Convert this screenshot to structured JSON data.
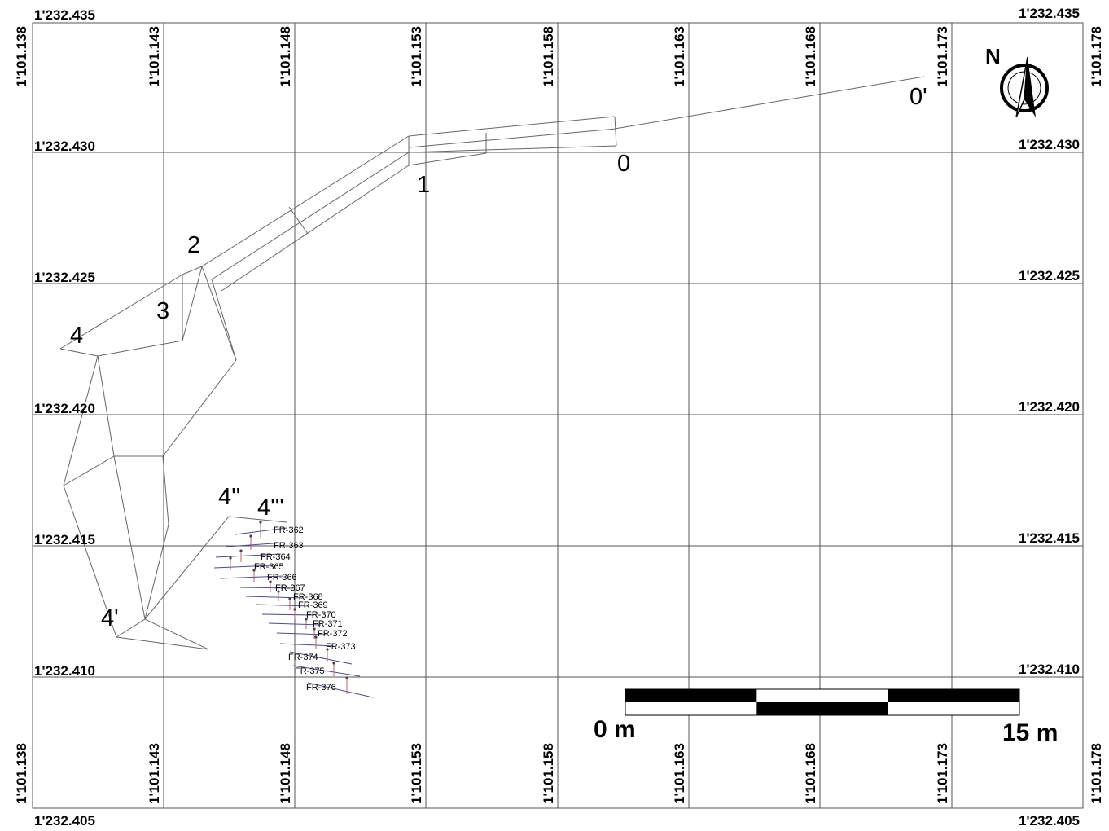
{
  "map": {
    "northings": [
      "1'232.435",
      "1'232.430",
      "1'232.425",
      "1'232.420",
      "1'232.415",
      "1'232.410",
      "1'232.405"
    ],
    "eastings": [
      "1'101.138",
      "1'101.143",
      "1'101.148",
      "1'101.153",
      "1'101.158",
      "1'101.163",
      "1'101.168",
      "1'101.173",
      "1'101.178"
    ],
    "north_arrow_label": "N",
    "scale_bar": {
      "start_label": "0 m",
      "end_label": "15 m"
    },
    "stations": [
      "0'",
      "0",
      "1",
      "2",
      "3",
      "4",
      "4'",
      "4''",
      "4'''"
    ],
    "fractures": [
      "FR-362",
      "FR-363",
      "FR-364",
      "FR-365",
      "FR-366",
      "FR-367",
      "FR-368",
      "FR-369",
      "FR-370",
      "FR-371",
      "FR-372",
      "FR-373",
      "FR-374",
      "FR-375",
      "FR-376"
    ],
    "colors": {
      "grid": "#555555",
      "survey_line": "#666666",
      "fracture_line": "#4a4a9a",
      "fracture_tick": "#c0606a",
      "scale_dark": "#000000"
    }
  }
}
